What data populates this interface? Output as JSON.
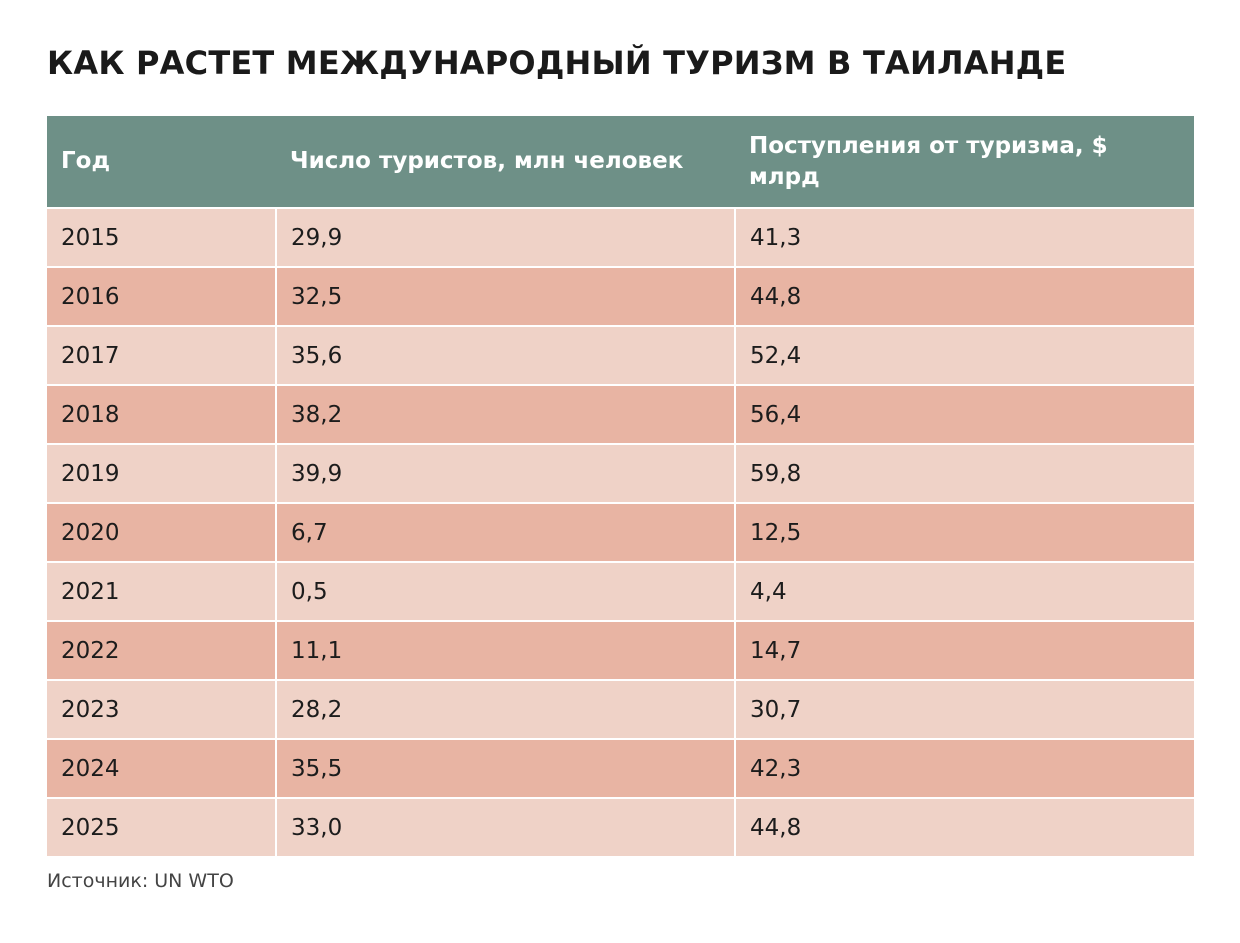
{
  "chart_data": {
    "type": "table",
    "title": "КАК РАСТЕТ МЕЖДУНАРОДНЫЙ ТУРИЗМ В ТАИЛАНДЕ",
    "columns": [
      "Год",
      "Число туристов, млн человек",
      "Поступления от туризма, $ млрд"
    ],
    "rows": [
      [
        "2015",
        "29,9",
        "41,3"
      ],
      [
        "2016",
        "32,5",
        "44,8"
      ],
      [
        "2017",
        "35,6",
        "52,4"
      ],
      [
        "2018",
        "38,2",
        "56,4"
      ],
      [
        "2019",
        "39,9",
        "59,8"
      ],
      [
        "2020",
        "6,7",
        "12,5"
      ],
      [
        "2021",
        "0,5",
        "4,4"
      ],
      [
        "2022",
        "11,1",
        "14,7"
      ],
      [
        "2023",
        "28,2",
        "30,7"
      ],
      [
        "2024",
        "35,5",
        "42,3"
      ],
      [
        "2025",
        "33,0",
        "44,8"
      ]
    ],
    "source": "Источник: UN WTO",
    "colors": {
      "header_bg": "#6e9087",
      "header_text": "#ffffff",
      "row_light": "#efd2c7",
      "row_dark": "#e8b4a3"
    }
  }
}
